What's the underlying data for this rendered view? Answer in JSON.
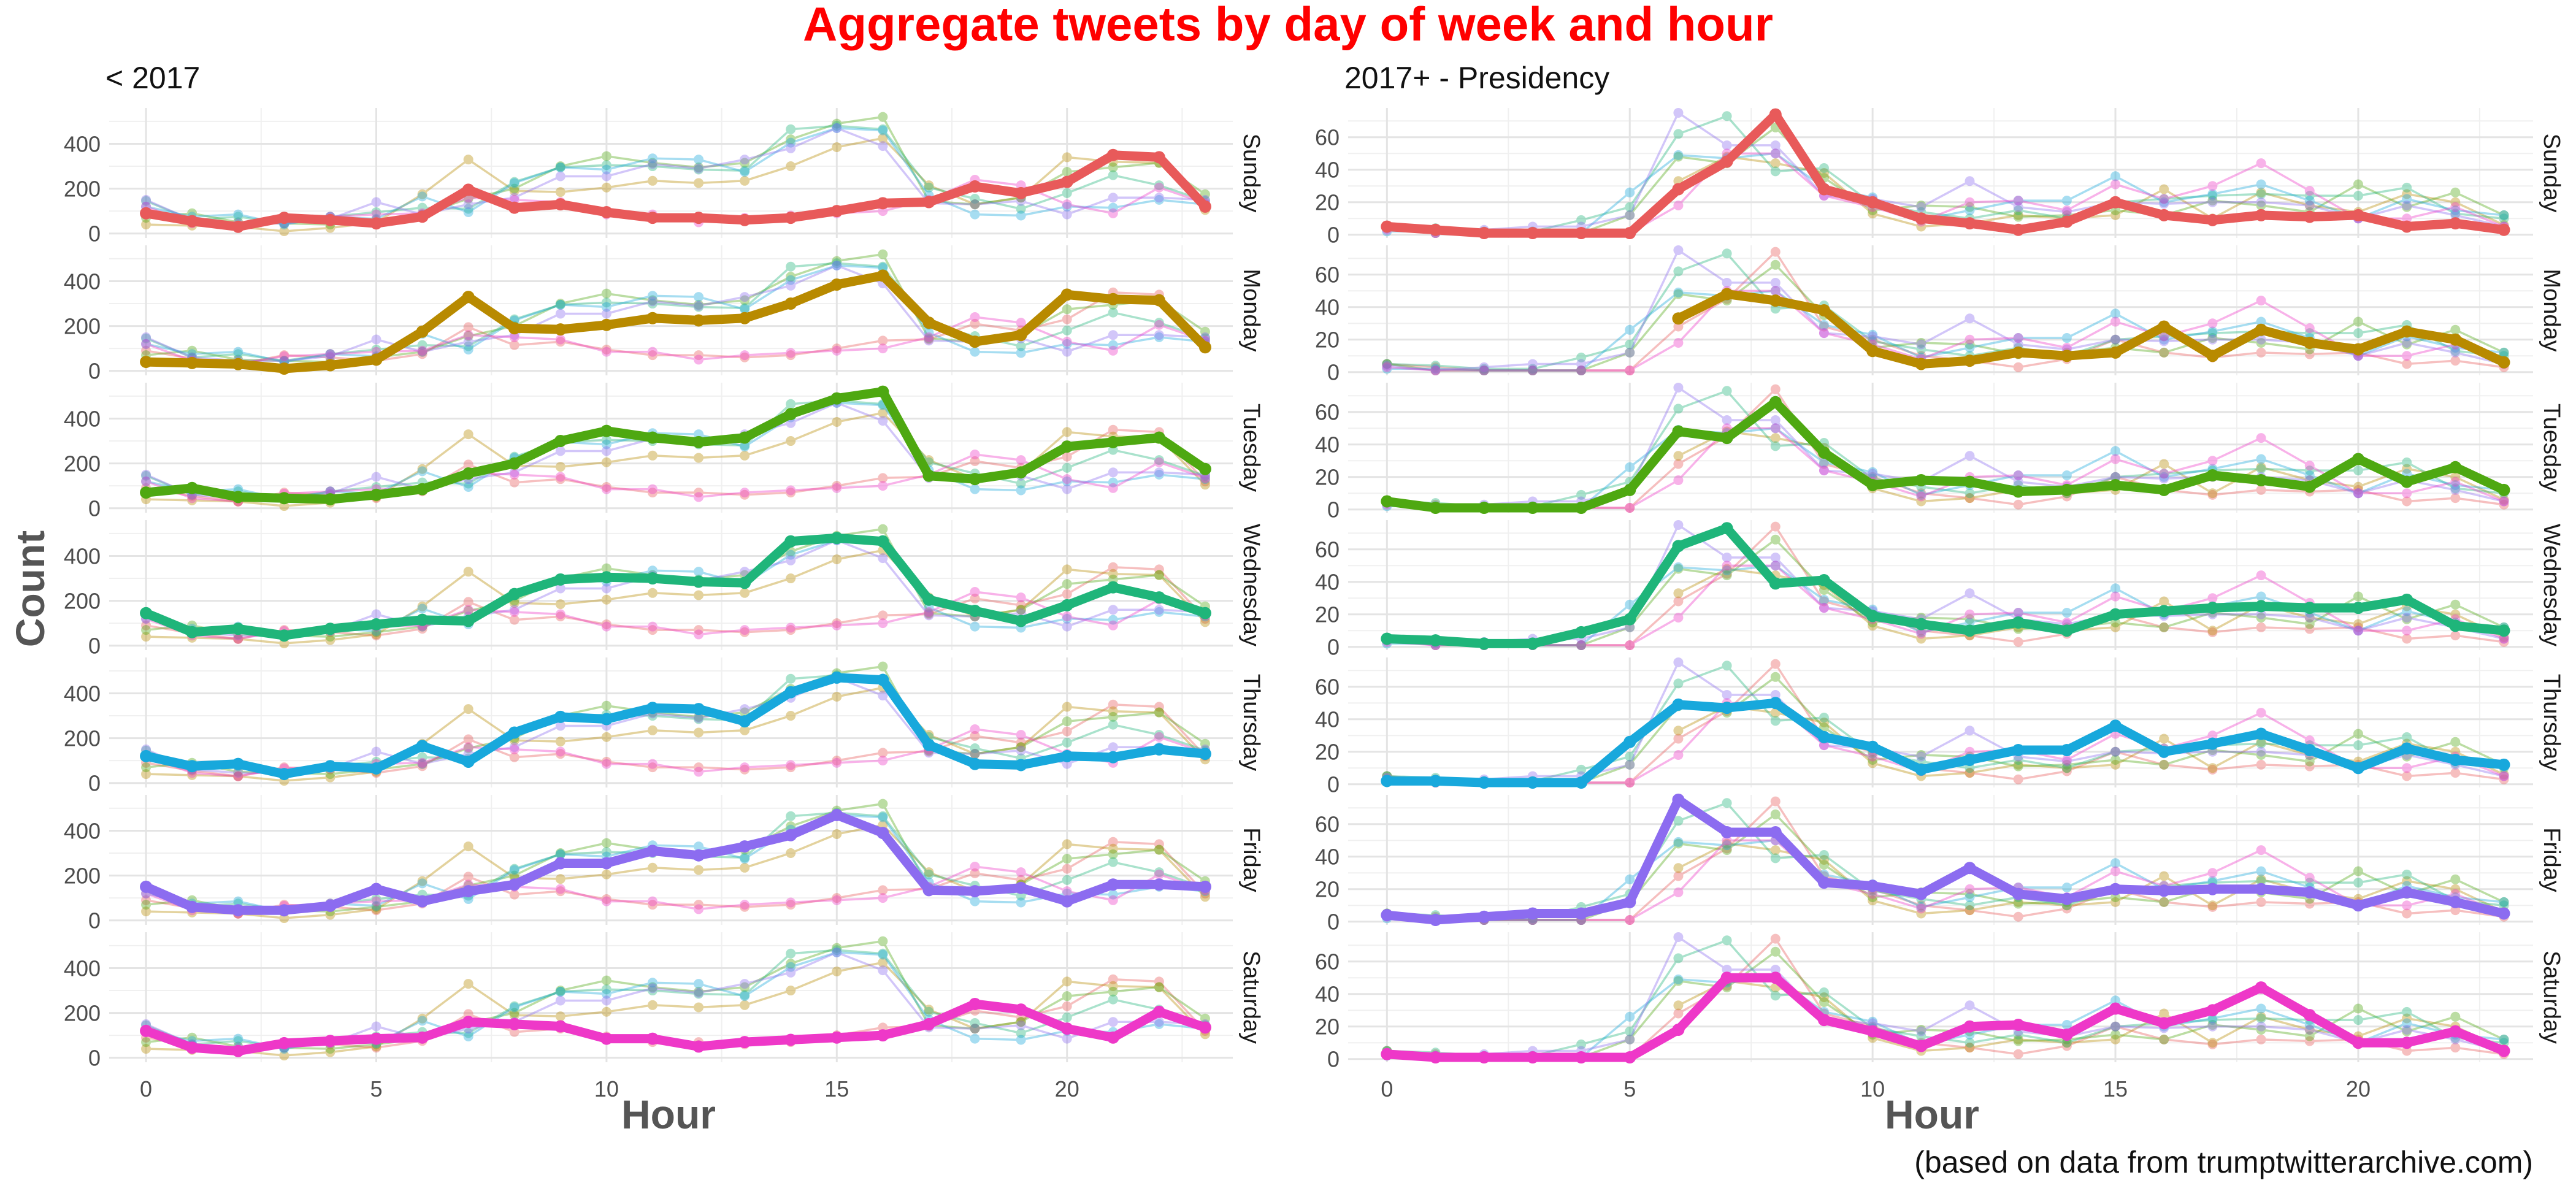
{
  "title": "Aggregate tweets by day of week and hour",
  "caption": "(based on data from trumptwitterarchive.com)",
  "ylabel": "Count",
  "xlabel": "Hour",
  "days": [
    "Sunday",
    "Monday",
    "Tuesday",
    "Wednesday",
    "Thursday",
    "Friday",
    "Saturday"
  ],
  "colors": {
    "title": "#ff0000",
    "Sunday": "#e85a5a",
    "Monday": "#b88a00",
    "Tuesday": "#4ea811",
    "Wednesday": "#1fb57a",
    "Thursday": "#18a8dc",
    "Friday": "#8c6cf0",
    "Saturday": "#ee38c8"
  },
  "chart_data": [
    {
      "type": "line",
      "title": "< 2017",
      "x": [
        0,
        1,
        2,
        3,
        4,
        5,
        6,
        7,
        8,
        9,
        10,
        11,
        12,
        13,
        14,
        15,
        16,
        17,
        18,
        19,
        20,
        21,
        22,
        23
      ],
      "xlim": [
        -0.8,
        23.6
      ],
      "ylim": [
        -20,
        560
      ],
      "yticks": [
        0,
        200,
        400
      ],
      "xticks": [
        0,
        5,
        10,
        15,
        20
      ],
      "series": [
        {
          "name": "Sunday",
          "values": [
            90,
            55,
            30,
            70,
            60,
            45,
            75,
            195,
            115,
            130,
            95,
            70,
            70,
            60,
            70,
            100,
            135,
            140,
            210,
            180,
            230,
            350,
            340,
            120
          ]
        },
        {
          "name": "Monday",
          "values": [
            40,
            35,
            30,
            10,
            25,
            50,
            175,
            330,
            190,
            185,
            205,
            235,
            225,
            235,
            300,
            385,
            425,
            215,
            130,
            160,
            340,
            320,
            315,
            105
          ]
        },
        {
          "name": "Tuesday",
          "values": [
            70,
            90,
            50,
            45,
            40,
            60,
            85,
            155,
            200,
            300,
            345,
            315,
            295,
            315,
            420,
            490,
            520,
            145,
            130,
            160,
            275,
            295,
            315,
            175
          ]
        },
        {
          "name": "Wednesday",
          "values": [
            145,
            60,
            75,
            45,
            75,
            95,
            115,
            110,
            230,
            295,
            305,
            300,
            285,
            280,
            465,
            480,
            465,
            205,
            155,
            110,
            180,
            260,
            215,
            145
          ]
        },
        {
          "name": "Thursday",
          "values": [
            120,
            75,
            85,
            40,
            75,
            65,
            165,
            95,
            225,
            295,
            285,
            335,
            330,
            275,
            405,
            470,
            460,
            170,
            85,
            80,
            120,
            115,
            150,
            130
          ]
        },
        {
          "name": "Friday",
          "values": [
            150,
            60,
            45,
            45,
            65,
            140,
            85,
            130,
            160,
            255,
            255,
            310,
            290,
            330,
            380,
            470,
            390,
            135,
            130,
            145,
            85,
            160,
            160,
            150
          ]
        },
        {
          "name": "Saturday",
          "values": [
            120,
            45,
            30,
            65,
            75,
            85,
            90,
            160,
            150,
            140,
            85,
            85,
            50,
            70,
            80,
            90,
            100,
            150,
            240,
            215,
            130,
            90,
            205,
            135
          ]
        }
      ]
    },
    {
      "type": "line",
      "title": "2017+ - Presidency",
      "x": [
        0,
        1,
        2,
        3,
        4,
        5,
        6,
        7,
        8,
        9,
        10,
        11,
        12,
        13,
        14,
        15,
        16,
        17,
        18,
        19,
        20,
        21,
        22,
        23
      ],
      "xlim": [
        -0.8,
        23.6
      ],
      "ylim": [
        -2,
        78
      ],
      "yticks": [
        0,
        20,
        40,
        60
      ],
      "xticks": [
        0,
        5,
        10,
        15,
        20
      ],
      "series": [
        {
          "name": "Sunday",
          "values": [
            5,
            3,
            1,
            1,
            1,
            1,
            28,
            45,
            74,
            28,
            20,
            10,
            7,
            3,
            8,
            20,
            12,
            9,
            12,
            11,
            12,
            5,
            7,
            3
          ]
        },
        {
          "name": "Monday",
          "values": [
            null,
            null,
            null,
            null,
            null,
            null,
            33,
            48,
            44,
            38,
            13,
            5,
            7,
            12,
            10,
            12,
            28,
            10,
            26,
            18,
            14,
            25,
            20,
            6
          ]
        },
        {
          "name": "Tuesday",
          "values": [
            5,
            1,
            1,
            1,
            1,
            12,
            48,
            44,
            66,
            35,
            15,
            18,
            17,
            11,
            12,
            15,
            12,
            21,
            18,
            14,
            31,
            17,
            26,
            12
          ]
        },
        {
          "name": "Wednesday",
          "values": [
            5,
            4,
            2,
            2,
            9,
            17,
            62,
            73,
            39,
            41,
            19,
            14,
            10,
            15,
            10,
            20,
            22,
            24,
            25,
            24,
            24,
            29,
            13,
            10
          ]
        },
        {
          "name": "Thursday",
          "values": [
            2,
            2,
            1,
            1,
            1,
            26,
            49,
            47,
            50,
            29,
            23,
            9,
            15,
            21,
            21,
            36,
            20,
            25,
            31,
            21,
            10,
            22,
            15,
            12
          ]
        },
        {
          "name": "Friday",
          "values": [
            4,
            1,
            3,
            5,
            5,
            12,
            75,
            55,
            55,
            24,
            22,
            17,
            33,
            17,
            14,
            20,
            19,
            20,
            20,
            18,
            10,
            18,
            12,
            5
          ]
        },
        {
          "name": "Saturday",
          "values": [
            3,
            1,
            1,
            1,
            1,
            1,
            18,
            50,
            50,
            24,
            17,
            8,
            20,
            21,
            15,
            31,
            22,
            30,
            44,
            27,
            10,
            10,
            17,
            5
          ]
        }
      ]
    }
  ]
}
